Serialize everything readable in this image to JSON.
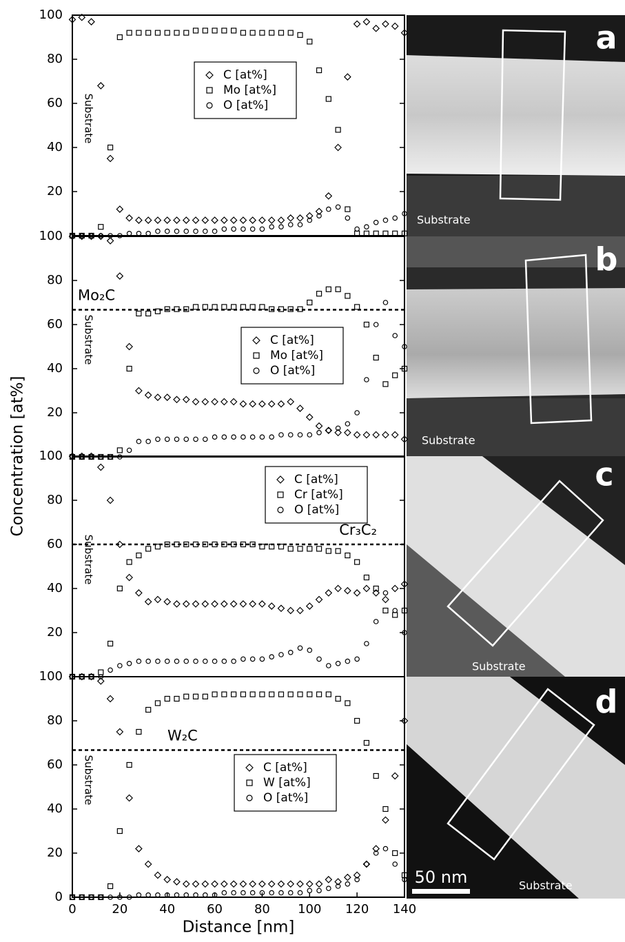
{
  "chart_data": [
    {
      "type": "scatter",
      "ylabel": "Concentration [at%]",
      "annotation": "Substrate",
      "legend": "upper center",
      "xlim": [
        0,
        140
      ],
      "ylim": [
        0,
        100
      ],
      "yticks": [
        20,
        40,
        60,
        80,
        100
      ],
      "x": [
        0,
        4,
        8,
        12,
        16,
        20,
        24,
        28,
        32,
        36,
        40,
        44,
        48,
        52,
        56,
        60,
        64,
        68,
        72,
        76,
        80,
        84,
        88,
        92,
        96,
        100,
        104,
        108,
        112,
        116,
        120,
        124,
        128,
        132,
        136,
        140
      ],
      "series": [
        {
          "name": "C [at%]",
          "color": "#000000",
          "marker": "diamond",
          "values": [
            98,
            99,
            97,
            68,
            35,
            12,
            8,
            7,
            7,
            7,
            7,
            7,
            7,
            7,
            7,
            7,
            7,
            7,
            7,
            7,
            7,
            7,
            7,
            8,
            8,
            9,
            11,
            18,
            40,
            72,
            96,
            97,
            94,
            96,
            95,
            92
          ]
        },
        {
          "name": "Mo [at%]",
          "color": "#000000",
          "marker": "square",
          "values": [
            0,
            0,
            0,
            4,
            40,
            90,
            92,
            92,
            92,
            92,
            92,
            92,
            92,
            93,
            93,
            93,
            93,
            93,
            92,
            92,
            92,
            92,
            92,
            92,
            91,
            88,
            75,
            62,
            48,
            12,
            1,
            1,
            1,
            1,
            1,
            1
          ]
        },
        {
          "name": "O [at%]",
          "color": "#000000",
          "marker": "circle",
          "values": [
            0,
            0,
            0,
            0,
            0,
            0,
            1,
            1,
            1,
            2,
            2,
            2,
            2,
            2,
            2,
            2,
            3,
            3,
            3,
            3,
            3,
            4,
            4,
            5,
            5,
            7,
            9,
            12,
            13,
            8,
            3,
            4,
            6,
            7,
            8,
            10
          ]
        }
      ]
    },
    {
      "type": "scatter",
      "annotation": "Substrate",
      "legend": "center right",
      "reference_line": {
        "value": 66.7,
        "label": "Mo₂C",
        "side": "left"
      },
      "xlim": [
        0,
        140
      ],
      "ylim": [
        0,
        100
      ],
      "yticks": [
        20,
        40,
        60,
        80,
        100
      ],
      "x": [
        0,
        4,
        8,
        12,
        16,
        20,
        24,
        28,
        32,
        36,
        40,
        44,
        48,
        52,
        56,
        60,
        64,
        68,
        72,
        76,
        80,
        84,
        88,
        92,
        96,
        100,
        104,
        108,
        112,
        116,
        120,
        124,
        128,
        132,
        136,
        140
      ],
      "series": [
        {
          "name": "C [at%]",
          "color": "#000000",
          "marker": "diamond",
          "values": [
            100,
            100,
            100,
            100,
            98,
            82,
            50,
            30,
            28,
            27,
            27,
            26,
            26,
            25,
            25,
            25,
            25,
            25,
            24,
            24,
            24,
            24,
            24,
            25,
            22,
            18,
            14,
            12,
            11,
            11,
            10,
            10,
            10,
            10,
            10,
            8
          ]
        },
        {
          "name": "Mo [at%]",
          "color": "#000000",
          "marker": "square",
          "values": [
            0,
            0,
            0,
            0,
            0,
            3,
            40,
            65,
            65,
            66,
            67,
            67,
            67,
            68,
            68,
            68,
            68,
            68,
            68,
            68,
            68,
            67,
            67,
            67,
            67,
            70,
            74,
            76,
            76,
            73,
            68,
            60,
            45,
            33,
            37,
            40
          ]
        },
        {
          "name": "O [at%]",
          "color": "#000000",
          "marker": "circle",
          "values": [
            0,
            0,
            0,
            0,
            0,
            0,
            3,
            7,
            7,
            8,
            8,
            8,
            8,
            8,
            8,
            9,
            9,
            9,
            9,
            9,
            9,
            9,
            10,
            10,
            10,
            10,
            11,
            12,
            13,
            15,
            20,
            35,
            60,
            70,
            55,
            50
          ]
        }
      ]
    },
    {
      "type": "scatter",
      "annotation": "Substrate",
      "legend": "upper right",
      "reference_line": {
        "value": 60,
        "label": "Cr₃C₂",
        "side": "right"
      },
      "xlim": [
        0,
        140
      ],
      "ylim": [
        0,
        100
      ],
      "yticks": [
        20,
        40,
        60,
        80,
        100
      ],
      "x": [
        0,
        4,
        8,
        12,
        16,
        20,
        24,
        28,
        32,
        36,
        40,
        44,
        48,
        52,
        56,
        60,
        64,
        68,
        72,
        76,
        80,
        84,
        88,
        92,
        96,
        100,
        104,
        108,
        112,
        116,
        120,
        124,
        128,
        132,
        136,
        140
      ],
      "series": [
        {
          "name": "C [at%]",
          "color": "#000000",
          "marker": "diamond",
          "values": [
            100,
            100,
            100,
            95,
            80,
            60,
            45,
            38,
            34,
            35,
            34,
            33,
            33,
            33,
            33,
            33,
            33,
            33,
            33,
            33,
            33,
            32,
            31,
            30,
            30,
            32,
            35,
            38,
            40,
            39,
            38,
            40,
            38,
            35,
            40,
            42
          ]
        },
        {
          "name": "Cr [at%]",
          "color": "#000000",
          "marker": "square",
          "values": [
            0,
            0,
            0,
            2,
            15,
            40,
            52,
            55,
            58,
            59,
            60,
            60,
            60,
            60,
            60,
            60,
            60,
            60,
            60,
            60,
            59,
            59,
            59,
            58,
            58,
            58,
            58,
            57,
            57,
            55,
            52,
            45,
            40,
            30,
            28,
            30
          ]
        },
        {
          "name": "O [at%]",
          "color": "#000000",
          "marker": "circle",
          "values": [
            0,
            0,
            0,
            0,
            3,
            5,
            6,
            7,
            7,
            7,
            7,
            7,
            7,
            7,
            7,
            7,
            7,
            7,
            8,
            8,
            8,
            9,
            10,
            11,
            13,
            12,
            8,
            5,
            6,
            7,
            8,
            15,
            25,
            38,
            30,
            20
          ]
        }
      ]
    },
    {
      "type": "scatter",
      "annotation": "Substrate",
      "legend": "center",
      "reference_line": {
        "value": 66.7,
        "label": "W₂C",
        "side": "center-left"
      },
      "xlabel": "Distance [nm]",
      "xlim": [
        0,
        140
      ],
      "ylim": [
        0,
        100
      ],
      "xticks": [
        0,
        20,
        40,
        60,
        80,
        100,
        120,
        140
      ],
      "yticks": [
        0,
        20,
        40,
        60,
        80,
        100
      ],
      "x": [
        0,
        4,
        8,
        12,
        16,
        20,
        24,
        28,
        32,
        36,
        40,
        44,
        48,
        52,
        56,
        60,
        64,
        68,
        72,
        76,
        80,
        84,
        88,
        92,
        96,
        100,
        104,
        108,
        112,
        116,
        120,
        124,
        128,
        132,
        136,
        140
      ],
      "series": [
        {
          "name": "C [at%]",
          "color": "#000000",
          "marker": "diamond",
          "values": [
            100,
            100,
            100,
            98,
            90,
            75,
            45,
            22,
            15,
            10,
            8,
            7,
            6,
            6,
            6,
            6,
            6,
            6,
            6,
            6,
            6,
            6,
            6,
            6,
            6,
            6,
            6,
            8,
            7,
            9,
            10,
            15,
            22,
            35,
            55,
            80
          ]
        },
        {
          "name": "W [at%]",
          "color": "#000000",
          "marker": "square",
          "values": [
            0,
            0,
            0,
            0,
            5,
            30,
            60,
            75,
            85,
            88,
            90,
            90,
            91,
            91,
            91,
            92,
            92,
            92,
            92,
            92,
            92,
            92,
            92,
            92,
            92,
            92,
            92,
            92,
            90,
            88,
            80,
            70,
            55,
            40,
            20,
            10
          ]
        },
        {
          "name": "O [at%]",
          "color": "#000000",
          "marker": "circle",
          "values": [
            0,
            0,
            0,
            0,
            0,
            0,
            0,
            1,
            1,
            1,
            1,
            1,
            1,
            1,
            1,
            1,
            2,
            2,
            2,
            2,
            2,
            2,
            2,
            2,
            2,
            3,
            3,
            4,
            5,
            6,
            8,
            15,
            20,
            22,
            15,
            8
          ]
        }
      ]
    }
  ],
  "micrographs": [
    {
      "label": "a",
      "caption": "Substrate"
    },
    {
      "label": "b",
      "caption": "Substrate"
    },
    {
      "label": "c",
      "caption": "Substrate"
    },
    {
      "label": "d",
      "caption": "Substrate"
    }
  ],
  "scale_bar": "50 nm"
}
